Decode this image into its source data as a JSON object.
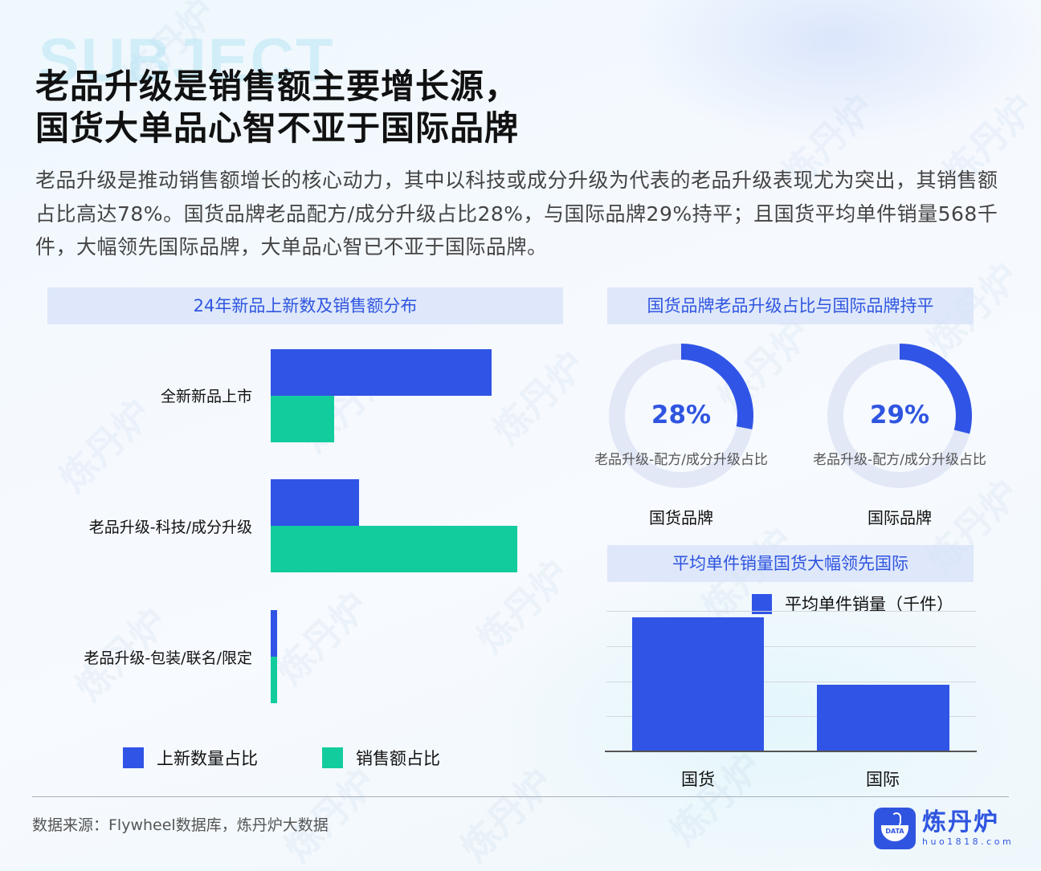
{
  "background_text": "SUBJECT",
  "title": {
    "line1": "老品升级是销售额主要增长源，",
    "line2": "国货大单品心智不亚于国际品牌"
  },
  "description": "老品升级是推动销售额增长的核心动力，其中以科技或成分升级为代表的老品升级表现尤为突出，其销售额占比高达78%。国货品牌老品配方/成分升级占比28%，与国际品牌29%持平；且国货平均单件销量568千件，大幅领先国际品牌，大单品心智已不亚于国际品牌。",
  "colors": {
    "accent_blue": "#3054e6",
    "accent_green": "#13cc9e",
    "donut_track": "#e3e8f7",
    "panel_header_bg": "#dbe3f8",
    "panel_header_text": "#2f55e0"
  },
  "watermark_text": "炼丹炉",
  "chart_data": [
    {
      "type": "bar",
      "orientation": "horizontal",
      "title": "24年新品上新数及销售额分布",
      "categories": [
        "全新新品上市",
        "老品升级-科技/成分升级",
        "老品升级-包装/联名/限定"
      ],
      "series": [
        {
          "name": "上新数量占比",
          "color": "#3054e6",
          "values": [
            70,
            28,
            2
          ]
        },
        {
          "name": "销售额占比",
          "color": "#13cc9e",
          "values": [
            20,
            78,
            2
          ]
        }
      ],
      "xlabel": "",
      "ylabel": "",
      "xlim": [
        0,
        100
      ],
      "grid": false,
      "legend_position": "bottom"
    },
    {
      "type": "pie",
      "subtype": "donut",
      "title": "国货品牌老品升级占比与国际品牌持平",
      "charts": [
        {
          "name": "国货品牌",
          "label": "老品升级-配方/成分升级占比",
          "value": 28,
          "display": "28%"
        },
        {
          "name": "国际品牌",
          "label": "老品升级-配方/成分升级占比",
          "value": 29,
          "display": "29%"
        }
      ]
    },
    {
      "type": "bar",
      "orientation": "vertical",
      "title": "平均单件销量国货大幅领先国际",
      "categories": [
        "国货",
        "国际"
      ],
      "series": [
        {
          "name": "平均单件销量（千件）",
          "color": "#3054e6",
          "values": [
            568,
            280
          ]
        }
      ],
      "xlabel": "",
      "ylabel": "",
      "ylim": [
        0,
        600
      ],
      "grid": true,
      "legend_position": "top-right"
    }
  ],
  "left_panel": {
    "header": "24年新品上新数及销售额分布",
    "rows": [
      {
        "label": "全新新品上市",
        "blue": 70,
        "green": 20
      },
      {
        "label": "老品升级-科技/成分升级",
        "blue": 28,
        "green": 78
      },
      {
        "label": "老品升级-包装/联名/限定",
        "blue": 2,
        "green": 2
      }
    ],
    "legend": {
      "blue": "上新数量占比",
      "green": "销售额占比"
    }
  },
  "right_top_panel": {
    "header": "国货品牌老品升级占比与国际品牌持平",
    "donuts": [
      {
        "value_text": "28%",
        "value": 28,
        "sub": "老品升级-配方/成分升级占比",
        "name": "国货品牌"
      },
      {
        "value_text": "29%",
        "value": 29,
        "sub": "老品升级-配方/成分升级占比",
        "name": "国际品牌"
      }
    ]
  },
  "right_bottom_panel": {
    "header": "平均单件销量国货大幅领先国际",
    "legend": "平均单件销量（千件）",
    "bars": [
      {
        "label": "国货",
        "value": 568
      },
      {
        "label": "国际",
        "value": 280
      }
    ]
  },
  "footer": {
    "source": "数据来源：Flywheel数据库，炼丹炉大数据",
    "logo_name": "炼丹炉",
    "logo_url": "huo1818.com",
    "logo_badge": "DATA"
  }
}
